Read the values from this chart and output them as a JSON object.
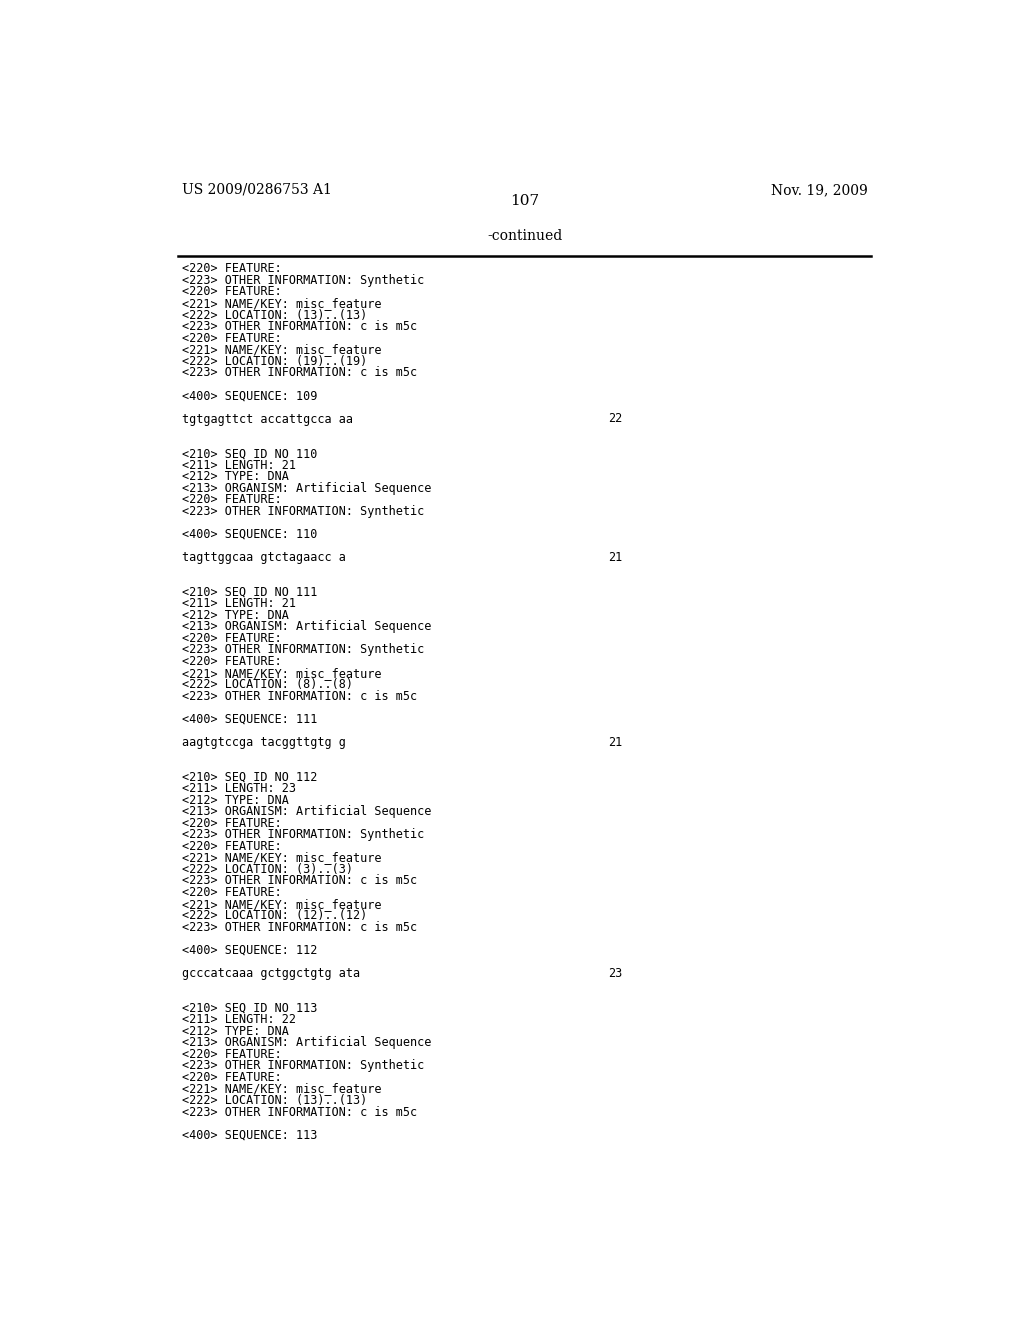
{
  "header_left": "US 2009/0286753 A1",
  "header_right": "Nov. 19, 2009",
  "page_number": "107",
  "continued_label": "-continued",
  "background_color": "#ffffff",
  "text_color": "#000000",
  "lines": [
    "<220> FEATURE:",
    "<223> OTHER INFORMATION: Synthetic",
    "<220> FEATURE:",
    "<221> NAME/KEY: misc_feature",
    "<222> LOCATION: (13)..(13)",
    "<223> OTHER INFORMATION: c is m5c",
    "<220> FEATURE:",
    "<221> NAME/KEY: misc_feature",
    "<222> LOCATION: (19)..(19)",
    "<223> OTHER INFORMATION: c is m5c",
    "",
    "<400> SEQUENCE: 109",
    "",
    "tgtgagttct accattgcca aa||22",
    "",
    "",
    "<210> SEQ ID NO 110",
    "<211> LENGTH: 21",
    "<212> TYPE: DNA",
    "<213> ORGANISM: Artificial Sequence",
    "<220> FEATURE:",
    "<223> OTHER INFORMATION: Synthetic",
    "",
    "<400> SEQUENCE: 110",
    "",
    "tagttggcaa gtctagaacc a||21",
    "",
    "",
    "<210> SEQ ID NO 111",
    "<211> LENGTH: 21",
    "<212> TYPE: DNA",
    "<213> ORGANISM: Artificial Sequence",
    "<220> FEATURE:",
    "<223> OTHER INFORMATION: Synthetic",
    "<220> FEATURE:",
    "<221> NAME/KEY: misc_feature",
    "<222> LOCATION: (8)..(8)",
    "<223> OTHER INFORMATION: c is m5c",
    "",
    "<400> SEQUENCE: 111",
    "",
    "aagtgtccga tacggttgtg g||21",
    "",
    "",
    "<210> SEQ ID NO 112",
    "<211> LENGTH: 23",
    "<212> TYPE: DNA",
    "<213> ORGANISM: Artificial Sequence",
    "<220> FEATURE:",
    "<223> OTHER INFORMATION: Synthetic",
    "<220> FEATURE:",
    "<221> NAME/KEY: misc_feature",
    "<222> LOCATION: (3)..(3)",
    "<223> OTHER INFORMATION: c is m5c",
    "<220> FEATURE:",
    "<221> NAME/KEY: misc_feature",
    "<222> LOCATION: (12)..(12)",
    "<223> OTHER INFORMATION: c is m5c",
    "",
    "<400> SEQUENCE: 112",
    "",
    "gcccatcaaa gctggctgtg ata||23",
    "",
    "",
    "<210> SEQ ID NO 113",
    "<211> LENGTH: 22",
    "<212> TYPE: DNA",
    "<213> ORGANISM: Artificial Sequence",
    "<220> FEATURE:",
    "<223> OTHER INFORMATION: Synthetic",
    "<220> FEATURE:",
    "<221> NAME/KEY: misc_feature",
    "<222> LOCATION: (13)..(13)",
    "<223> OTHER INFORMATION: c is m5c",
    "",
    "<400> SEQUENCE: 113"
  ]
}
